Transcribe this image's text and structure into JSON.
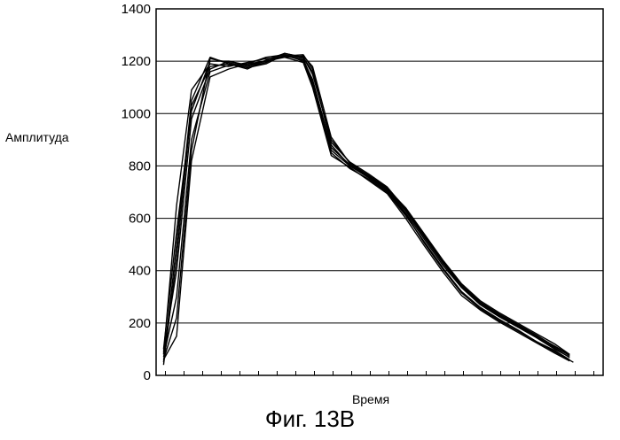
{
  "chart_data": {
    "type": "line",
    "title": "",
    "xlabel": "Время",
    "ylabel": "Амплитуда",
    "caption": "Фиг. 13В",
    "ylim": [
      0,
      1400
    ],
    "yticks": [
      "0",
      "200",
      "400",
      "600",
      "800",
      "1000",
      "1200",
      "1400"
    ],
    "grid": true,
    "legend": "none",
    "x_tick_count": 24,
    "series": [
      {
        "x": [
          0,
          0.7,
          1.5,
          2.5,
          3.5,
          4.5,
          5.5,
          6.5,
          7.5,
          8.0,
          9.0,
          10.0,
          11.0,
          12.0,
          13.0,
          14.0,
          15.0,
          16.0,
          17.0,
          18.0,
          19.0,
          20.0,
          21.0,
          22.0
        ],
        "values": [
          60,
          220,
          860,
          1210,
          1195,
          1175,
          1190,
          1225,
          1200,
          1110,
          850,
          790,
          750,
          700,
          610,
          510,
          410,
          320,
          260,
          215,
          175,
          130,
          90,
          50
        ]
      },
      {
        "x": [
          0,
          0.7,
          1.5,
          2.5,
          3.5,
          4.5,
          5.5,
          6.5,
          7.5,
          8.0,
          9.0,
          10.0,
          11.0,
          12.0,
          13.0,
          14.0,
          15.0,
          16.0,
          17.0,
          18.0,
          19.0,
          20.0,
          21.0,
          21.8
        ],
        "values": [
          90,
          400,
          980,
          1170,
          1200,
          1185,
          1200,
          1220,
          1205,
          1130,
          870,
          805,
          760,
          710,
          620,
          520,
          420,
          335,
          270,
          225,
          185,
          145,
          100,
          70
        ]
      },
      {
        "x": [
          0,
          0.7,
          1.5,
          2.5,
          3.5,
          4.5,
          5.5,
          6.5,
          7.5,
          8.0,
          9.0,
          10.0,
          11.0,
          12.0,
          13.0,
          14.0,
          15.0,
          16.0,
          17.0,
          18.0,
          19.0,
          20.0,
          21.0,
          21.8
        ],
        "values": [
          50,
          500,
          1050,
          1215,
          1190,
          1170,
          1205,
          1230,
          1215,
          1160,
          890,
          815,
          770,
          720,
          635,
          535,
          435,
          345,
          280,
          235,
          195,
          155,
          110,
          75
        ]
      },
      {
        "x": [
          0,
          0.7,
          1.5,
          2.5,
          3.5,
          4.5,
          5.5,
          6.5,
          7.5,
          8.0,
          9.0,
          10.0,
          11.0,
          12.0,
          13.0,
          14.0,
          15.0,
          16.0,
          17.0,
          18.0,
          19.0,
          20.0,
          21.0,
          21.8
        ],
        "values": [
          80,
          650,
          1090,
          1190,
          1180,
          1195,
          1210,
          1215,
          1220,
          1180,
          910,
          810,
          765,
          715,
          640,
          540,
          440,
          350,
          285,
          240,
          200,
          160,
          120,
          80
        ]
      },
      {
        "x": [
          0,
          0.7,
          1.5,
          2.5,
          3.5,
          4.5,
          5.5,
          6.5,
          7.5,
          8.0,
          9.0,
          10.0,
          11.0,
          12.0,
          13.0,
          14.0,
          15.0,
          16.0,
          17.0,
          18.0,
          19.0,
          20.0,
          21.0,
          21.8
        ],
        "values": [
          70,
          300,
          900,
          1160,
          1185,
          1190,
          1215,
          1225,
          1210,
          1120,
          860,
          800,
          755,
          705,
          615,
          505,
          405,
          315,
          255,
          210,
          170,
          130,
          95,
          60
        ]
      },
      {
        "x": [
          0,
          0.7,
          1.5,
          2.5,
          3.5,
          4.5,
          5.5,
          6.5,
          7.5,
          8.0,
          9.0,
          10.0,
          11.0,
          12.0,
          13.0,
          14.0,
          15.0,
          16.0,
          17.0,
          18.0,
          19.0,
          20.0,
          21.0,
          21.8
        ],
        "values": [
          100,
          550,
          1010,
          1200,
          1200,
          1180,
          1200,
          1220,
          1225,
          1170,
          880,
          800,
          760,
          712,
          628,
          528,
          428,
          340,
          275,
          228,
          188,
          148,
          105,
          68
        ]
      },
      {
        "x": [
          0,
          0.7,
          1.5,
          2.5,
          3.5,
          4.5,
          5.5,
          6.5,
          7.5,
          8.0,
          9.0,
          10.0,
          11.0,
          12.0,
          13.0,
          14.0,
          15.0,
          16.0,
          17.0,
          18.0,
          19.0,
          20.0,
          21.0,
          21.8
        ],
        "values": [
          60,
          150,
          820,
          1140,
          1170,
          1190,
          1200,
          1215,
          1195,
          1100,
          840,
          795,
          745,
          695,
          600,
          495,
          395,
          305,
          250,
          205,
          165,
          125,
          85,
          55
        ]
      },
      {
        "x": [
          0,
          0.7,
          1.5,
          2.5,
          3.5,
          4.5,
          5.5,
          6.5,
          7.5,
          8.0,
          9.0,
          10.0,
          11.0,
          12.0,
          13.0,
          14.0,
          15.0,
          16.0,
          17.0,
          18.0,
          19.0,
          20.0,
          21.0,
          21.8
        ],
        "values": [
          40,
          450,
          1030,
          1180,
          1190,
          1175,
          1195,
          1230,
          1215,
          1150,
          900,
          812,
          762,
          718,
          632,
          532,
          432,
          342,
          278,
          232,
          192,
          152,
          112,
          78
        ]
      }
    ]
  }
}
